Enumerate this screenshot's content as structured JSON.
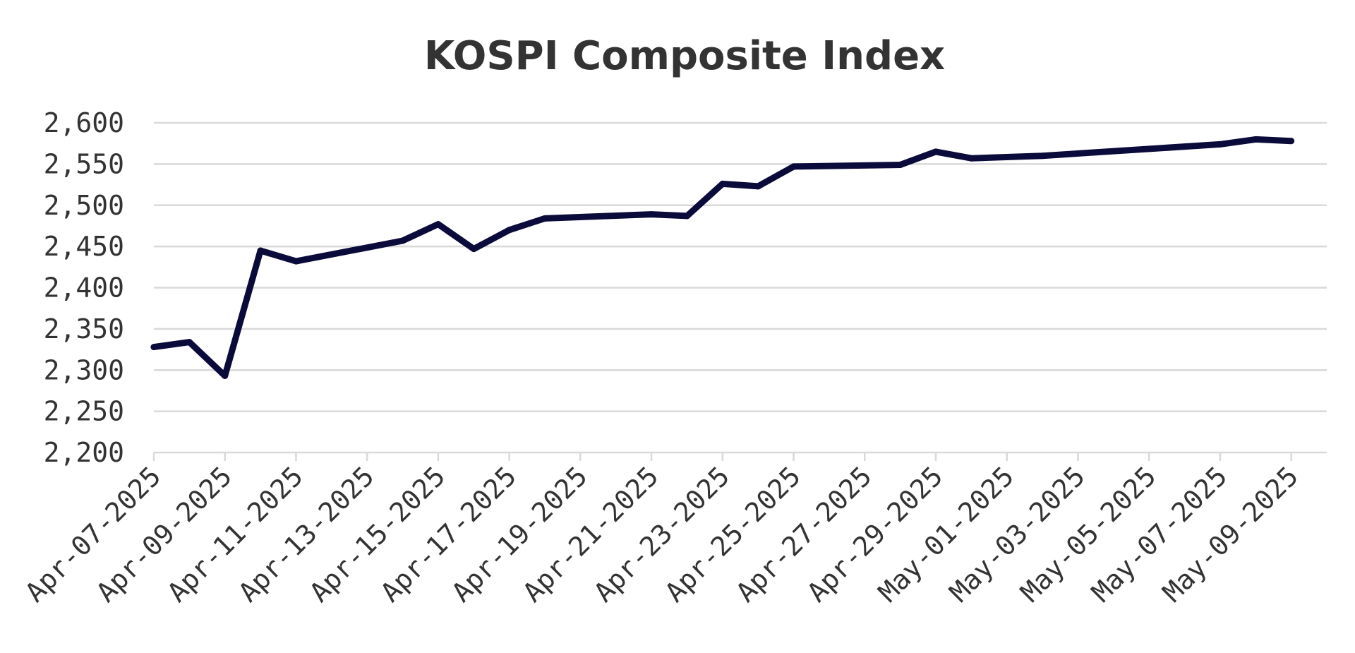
{
  "chart_data": {
    "type": "line",
    "title": "KOSPI Composite Index",
    "xlabel": "",
    "ylabel": "",
    "x_date_range": [
      "2025-04-07",
      "2025-05-10"
    ],
    "ylim": [
      2200,
      2600
    ],
    "y_ticks": [
      2200,
      2250,
      2300,
      2350,
      2400,
      2450,
      2500,
      2550,
      2600
    ],
    "y_tick_labels": [
      "2,200",
      "2,250",
      "2,300",
      "2,350",
      "2,400",
      "2,450",
      "2,500",
      "2,550",
      "2,600"
    ],
    "x_ticks": [
      "2025-04-07",
      "2025-04-09",
      "2025-04-11",
      "2025-04-13",
      "2025-04-15",
      "2025-04-17",
      "2025-04-19",
      "2025-04-21",
      "2025-04-23",
      "2025-04-25",
      "2025-04-27",
      "2025-04-29",
      "2025-05-01",
      "2025-05-03",
      "2025-05-05",
      "2025-05-07",
      "2025-05-09"
    ],
    "x_tick_labels": [
      "Apr-07-2025",
      "Apr-09-2025",
      "Apr-11-2025",
      "Apr-13-2025",
      "Apr-15-2025",
      "Apr-17-2025",
      "Apr-19-2025",
      "Apr-21-2025",
      "Apr-23-2025",
      "Apr-25-2025",
      "Apr-27-2025",
      "Apr-29-2025",
      "May-01-2025",
      "May-03-2025",
      "May-05-2025",
      "May-07-2025",
      "May-09-2025"
    ],
    "grid": true,
    "legend": "none",
    "series": [
      {
        "color": "#0b0b3b",
        "points": [
          {
            "x": "2025-04-07",
            "y": 2328
          },
          {
            "x": "2025-04-08",
            "y": 2334
          },
          {
            "x": "2025-04-09",
            "y": 2293
          },
          {
            "x": "2025-04-10",
            "y": 2445
          },
          {
            "x": "2025-04-11",
            "y": 2432
          },
          {
            "x": "2025-04-14",
            "y": 2457
          },
          {
            "x": "2025-04-15",
            "y": 2477
          },
          {
            "x": "2025-04-16",
            "y": 2447
          },
          {
            "x": "2025-04-17",
            "y": 2470
          },
          {
            "x": "2025-04-18",
            "y": 2484
          },
          {
            "x": "2025-04-21",
            "y": 2489
          },
          {
            "x": "2025-04-22",
            "y": 2487
          },
          {
            "x": "2025-04-23",
            "y": 2526
          },
          {
            "x": "2025-04-24",
            "y": 2523
          },
          {
            "x": "2025-04-25",
            "y": 2547
          },
          {
            "x": "2025-04-28",
            "y": 2549
          },
          {
            "x": "2025-04-29",
            "y": 2565
          },
          {
            "x": "2025-04-30",
            "y": 2557
          },
          {
            "x": "2025-05-02",
            "y": 2560
          },
          {
            "x": "2025-05-07",
            "y": 2574
          },
          {
            "x": "2025-05-08",
            "y": 2580
          },
          {
            "x": "2025-05-09",
            "y": 2578
          }
        ]
      }
    ]
  }
}
